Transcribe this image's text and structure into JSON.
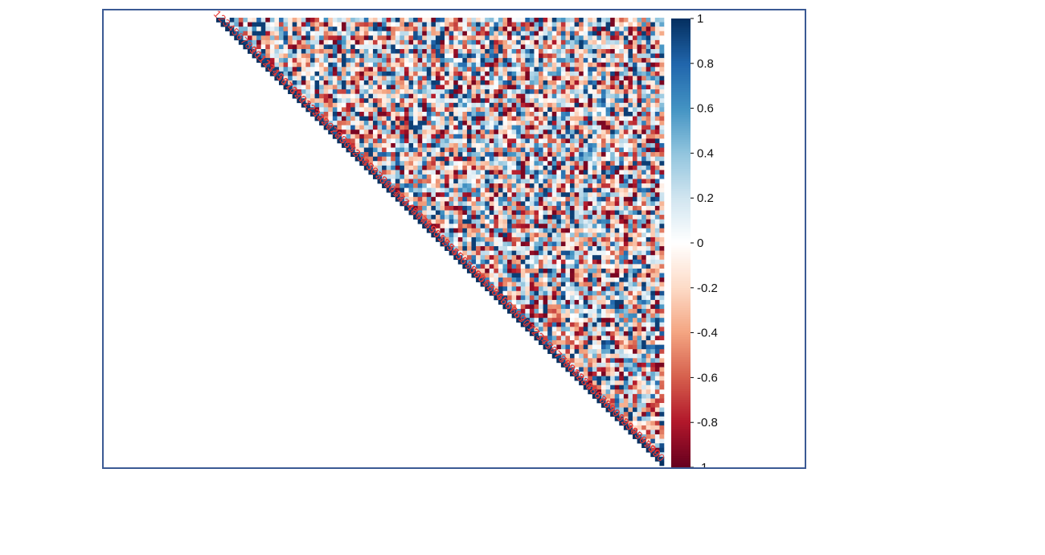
{
  "chart_data": {
    "type": "heatmap",
    "variant": "upper-triangular correlation matrix",
    "n_variables": 100,
    "variable_labels": [
      "1",
      "2",
      "3",
      "4",
      "5",
      "6",
      "7",
      "8",
      "9",
      "10",
      "11",
      "12",
      "13",
      "14",
      "15",
      "16",
      "17",
      "18",
      "19",
      "20",
      "21",
      "22",
      "23",
      "24",
      "25",
      "26",
      "27",
      "28",
      "29",
      "30",
      "31",
      "32",
      "33",
      "34",
      "35",
      "36",
      "37",
      "38",
      "39",
      "40",
      "41",
      "42",
      "43",
      "44",
      "45",
      "46",
      "47",
      "48",
      "49",
      "50",
      "51",
      "52",
      "53",
      "54",
      "55",
      "56",
      "57",
      "58",
      "59",
      "60",
      "61",
      "62",
      "63",
      "64",
      "65",
      "66",
      "67",
      "68",
      "69",
      "70",
      "71",
      "72",
      "73",
      "74",
      "75",
      "76",
      "77",
      "78",
      "79",
      "80",
      "81",
      "82",
      "83",
      "84",
      "85",
      "86",
      "87",
      "88",
      "89",
      "90",
      "91",
      "92",
      "93",
      "94",
      "95",
      "96",
      "97",
      "98",
      "99",
      "100"
    ],
    "diagonal_value": 1,
    "off_diagonal_values": "random correlations spread across -0.9 to 0.9 (individual cell values not legible)",
    "colorbar": {
      "ticks": [
        "1",
        "0.8",
        "0.6",
        "0.4",
        "0.2",
        "0",
        "-0.2",
        "-0.4",
        "-0.6",
        "-0.8",
        "-1"
      ],
      "range": [
        -1,
        1
      ],
      "colors": [
        "#67001f",
        "#b2182b",
        "#d6604d",
        "#f4a582",
        "#fddbc7",
        "#ffffff",
        "#d1e5f0",
        "#92c5de",
        "#4393c3",
        "#2166ac",
        "#053061"
      ]
    },
    "label_color": "#e53935",
    "frame_color": "#3b5a94",
    "grid": false
  }
}
